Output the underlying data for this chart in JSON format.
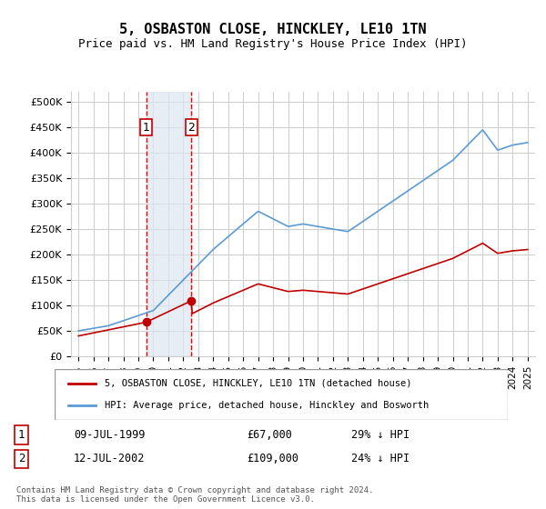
{
  "title": "5, OSBASTON CLOSE, HINCKLEY, LE10 1TN",
  "subtitle": "Price paid vs. HM Land Registry's House Price Index (HPI)",
  "legend_line1": "5, OSBASTON CLOSE, HINCKLEY, LE10 1TN (detached house)",
  "legend_line2": "HPI: Average price, detached house, Hinckley and Bosworth",
  "footnote": "Contains HM Land Registry data © Crown copyright and database right 2024.\nThis data is licensed under the Open Government Licence v3.0.",
  "sale1_label": "1",
  "sale1_date": "09-JUL-1999",
  "sale1_price": "£67,000",
  "sale1_hpi": "29% ↓ HPI",
  "sale2_label": "2",
  "sale2_date": "12-JUL-2002",
  "sale2_price": "£109,000",
  "sale2_hpi": "24% ↓ HPI",
  "hpi_color": "#5b9bd5",
  "price_color": "#c00000",
  "sale_marker_color": "#c00000",
  "vline_color": "#ff0000",
  "shade_color": "#dce6f1",
  "ylim": [
    0,
    520000
  ],
  "yticks": [
    0,
    50000,
    100000,
    150000,
    200000,
    250000,
    300000,
    350000,
    400000,
    450000,
    500000
  ],
  "sale1_x": 1999.52,
  "sale1_y": 67000,
  "sale2_x": 2002.53,
  "sale2_y": 109000,
  "xmin": 1994.5,
  "xmax": 2025.5
}
